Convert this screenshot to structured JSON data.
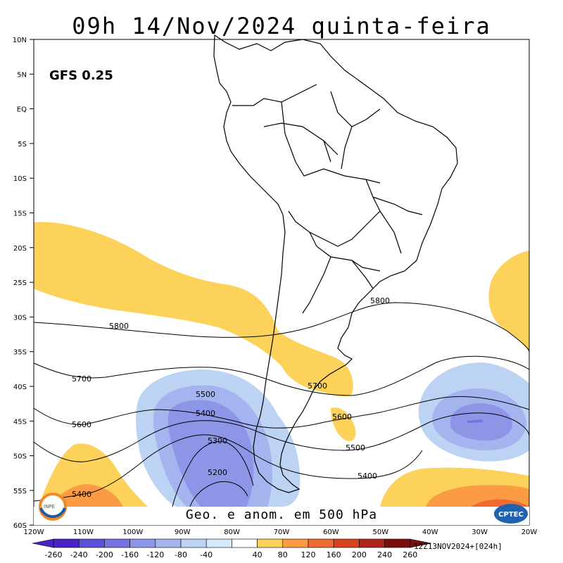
{
  "title": "09h 14/Nov/2024 quinta-feira",
  "model_label": "GFS 0.25",
  "footer_label": "Geo. e anom. em 500 hPa",
  "run_label": "12Z13NOV2024+[024h]",
  "logos": {
    "left": "INPE",
    "right": "CPTEC"
  },
  "lat_labels": [
    "10N",
    "5N",
    "EQ",
    "5S",
    "10S",
    "15S",
    "20S",
    "25S",
    "30S",
    "35S",
    "40S",
    "45S",
    "50S",
    "55S",
    "60S"
  ],
  "lon_labels": [
    "120W",
    "110W",
    "100W",
    "90W",
    "80W",
    "70W",
    "60W",
    "50W",
    "40W",
    "30W",
    "20W"
  ],
  "contour_labels": [
    "5800",
    "5800",
    "5700",
    "5700",
    "5600",
    "5600",
    "5500",
    "5500",
    "5400",
    "5400",
    "5400",
    "5300",
    "5200"
  ],
  "colorbar": {
    "labels": [
      "-260",
      "-240",
      "-200",
      "-160",
      "-120",
      "-80",
      "-40",
      "40",
      "80",
      "120",
      "160",
      "200",
      "240",
      "260"
    ],
    "colors": [
      "#4b22c8",
      "#5e4fd8",
      "#7574e0",
      "#8d95e6",
      "#a4b4ee",
      "#bcd3f4",
      "#d2eafa",
      "#ffffff",
      "#fcd25b",
      "#fb9c45",
      "#f06a32",
      "#d9421f",
      "#b0241a",
      "#7c0d0d"
    ]
  }
}
